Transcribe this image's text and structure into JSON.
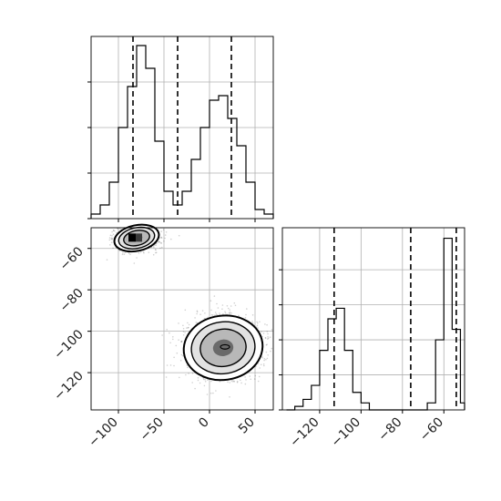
{
  "chart_data": [
    {
      "panel": "x1-marginal",
      "type": "histogram",
      "xlim": [
        -130,
        70
      ],
      "bins": [
        -130,
        -120,
        -110,
        -100,
        -90,
        -80,
        -70,
        -60,
        -50,
        -40,
        -30,
        -20,
        -10,
        0,
        10,
        20,
        30,
        40,
        50,
        60,
        70
      ],
      "counts": [
        1,
        3,
        8,
        20,
        29,
        38,
        33,
        17,
        6,
        3,
        6,
        13,
        20,
        26,
        27,
        22,
        16,
        8,
        2,
        1
      ],
      "ylim": [
        0,
        40
      ],
      "quantiles": [
        -84,
        -35,
        24
      ],
      "grid": true
    },
    {
      "panel": "x1-x2-joint",
      "type": "scatter-density",
      "xlabel_ticks": [
        "−100",
        "−50",
        "0",
        "50"
      ],
      "xticks": [
        -100,
        -50,
        0,
        50
      ],
      "ylabel_ticks": [
        "−60",
        "−80",
        "−100",
        "−120"
      ],
      "yticks": [
        -60,
        -80,
        -100,
        -120
      ],
      "xlim": [
        -130,
        70
      ],
      "ylim": [
        -138,
        -50
      ],
      "clusters": [
        {
          "center_x": -80,
          "center_y": -55,
          "spread_x": 16,
          "spread_y": 4,
          "contour_levels": 3
        },
        {
          "center_x": 15,
          "center_y": -108,
          "spread_x": 28,
          "spread_y": 10,
          "contour_levels": 3
        }
      ],
      "grid": true
    },
    {
      "panel": "x2-marginal",
      "type": "histogram",
      "xlim": [
        -138,
        -50
      ],
      "bins": [
        -136,
        -132,
        -128,
        -124,
        -120,
        -116,
        -112,
        -108,
        -104,
        -100,
        -96,
        -92,
        -88,
        -84,
        -80,
        -76,
        -72,
        -68,
        -64,
        -60,
        -56,
        -52,
        -48
      ],
      "counts": [
        0,
        1,
        3,
        7,
        17,
        26,
        29,
        17,
        5,
        2,
        0,
        0,
        0,
        0,
        0,
        0,
        0,
        2,
        20,
        49,
        23,
        2
      ],
      "ylim": [
        0,
        52
      ],
      "quantiles": [
        -113,
        -76,
        -54
      ],
      "xlabel_ticks": [
        "−120",
        "−100",
        "−80",
        "−60"
      ],
      "xticks": [
        -120,
        -100,
        -80,
        -60
      ],
      "grid": true
    }
  ]
}
